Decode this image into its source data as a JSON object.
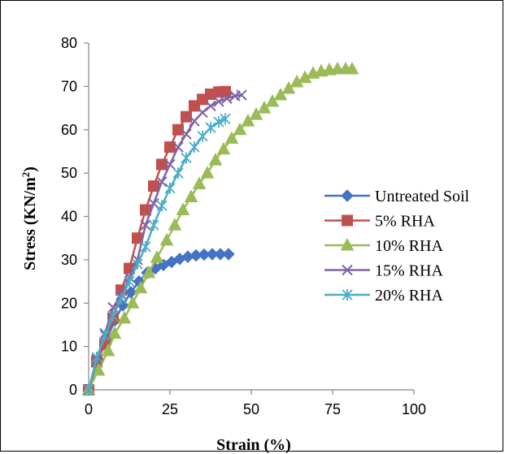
{
  "chart_data": {
    "type": "line",
    "title": "",
    "xlabel": "Strain (%)",
    "ylabel_main": "Stress (KN/m",
    "ylabel_sup": "2",
    "ylabel_close": ")",
    "xlim": [
      0,
      100
    ],
    "ylim": [
      0,
      80
    ],
    "xticks": [
      "0",
      "25",
      "50",
      "75",
      "100"
    ],
    "yticks": [
      "0",
      "10",
      "20",
      "30",
      "40",
      "50",
      "60",
      "70",
      "80"
    ],
    "grid": false,
    "legend_position": "right",
    "series": [
      {
        "name": "Untreated Soil",
        "color": "#4472C4",
        "marker": "diamond",
        "x": [
          0,
          3,
          5.5,
          8,
          10.5,
          13,
          15.5,
          18,
          20.5,
          23,
          25.5,
          28,
          30.5,
          33,
          35.5,
          38,
          40.5,
          43
        ],
        "y": [
          0,
          7,
          11.5,
          16,
          19.5,
          22.5,
          25,
          27,
          28,
          28.8,
          29.5,
          30.2,
          30.7,
          31,
          31.2,
          31.3,
          31.3,
          31.3
        ]
      },
      {
        "name": "5% RHA",
        "color": "#C0504D",
        "marker": "square",
        "x": [
          0,
          2.5,
          5,
          7.5,
          10,
          12.5,
          15,
          17.5,
          20,
          22.5,
          25,
          27.5,
          30,
          32.5,
          35,
          37.5,
          40,
          42
        ],
        "y": [
          0,
          6.5,
          10.5,
          16.5,
          23,
          28,
          35,
          41.5,
          47,
          52,
          56,
          60,
          63,
          65.5,
          67,
          68.2,
          68.7,
          68.8
        ]
      },
      {
        "name": "10% RHA",
        "color": "#9BBB59",
        "marker": "triangle",
        "x": [
          0,
          3,
          6,
          8,
          11,
          13.5,
          16,
          18.5,
          21,
          24,
          26.5,
          29,
          31.5,
          34,
          36.5,
          39,
          41.5,
          44,
          46.5,
          49,
          51.5,
          54,
          56.5,
          59,
          61.5,
          64,
          66.5,
          69,
          71.5,
          74,
          76.5,
          79,
          81
        ],
        "y": [
          0,
          4.5,
          9,
          13,
          16.5,
          20,
          23.5,
          27,
          30.5,
          34.5,
          38,
          41.5,
          44.5,
          47.5,
          50,
          53,
          55.5,
          58,
          60,
          62,
          63.5,
          65,
          66.5,
          68,
          69.5,
          71,
          72,
          73,
          73.5,
          73.8,
          74,
          74,
          74
        ]
      },
      {
        "name": "15% RHA",
        "color": "#8064A2",
        "marker": "x",
        "x": [
          0,
          2.5,
          5,
          7.5,
          10,
          12.5,
          15,
          17.5,
          20,
          22.5,
          25,
          27.5,
          30,
          32.5,
          35,
          37.5,
          40,
          42.5,
          45,
          47
        ],
        "y": [
          0,
          7,
          13,
          19,
          22,
          26,
          30,
          38,
          43,
          48,
          52,
          56,
          59,
          62,
          64,
          65.5,
          66.5,
          67.2,
          67.8,
          68
        ]
      },
      {
        "name": "20% RHA",
        "color": "#4BACC6",
        "marker": "asterisk",
        "x": [
          0,
          2.5,
          5,
          7.5,
          10,
          12.5,
          15,
          17.5,
          20,
          22.5,
          25,
          27.5,
          30,
          32.5,
          35,
          37.5,
          40,
          42
        ],
        "y": [
          0,
          7.5,
          12.5,
          17,
          21,
          25,
          29,
          33,
          38,
          42.5,
          46.5,
          50,
          53.5,
          56,
          58.5,
          60.5,
          61.8,
          62.5
        ]
      }
    ]
  }
}
